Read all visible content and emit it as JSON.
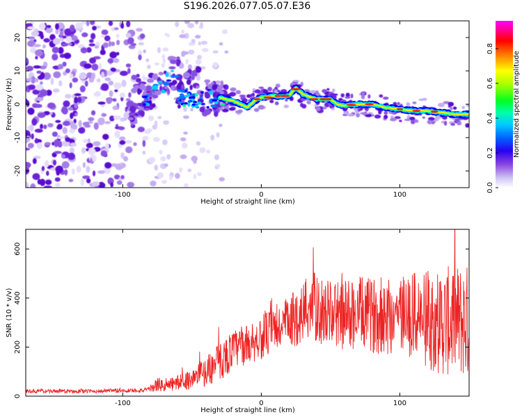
{
  "title": "S196.2026.077.05.07.E36",
  "chart_data": [
    {
      "type": "heatmap",
      "name": "spectrogram",
      "xlabel": "Height of straight line (km)",
      "ylabel": "Frequency (Hz)",
      "xlim": [
        -170,
        150
      ],
      "ylim": [
        -25,
        25
      ],
      "xticks": [
        -100,
        0,
        100
      ],
      "yticks": [
        -20,
        -10,
        0,
        10,
        20
      ],
      "colorbar": {
        "label": "Normalized spectral amplitude",
        "range": [
          0,
          0.96
        ],
        "ticks": [
          0.0,
          0.2,
          0.4,
          0.6,
          0.8
        ],
        "colormap": [
          "#ffffff",
          "#cfc2f2",
          "#9d6ee0",
          "#6a18d8",
          "#0000ff",
          "#0088ff",
          "#00ffff",
          "#00ff44",
          "#aaff00",
          "#ffff00",
          "#ff6a00",
          "#ff0000",
          "#ff00aa",
          "#ff00ff"
        ]
      },
      "ridge": {
        "description_points_x": [
          -30,
          -20,
          -15,
          -10,
          -5,
          0,
          10,
          20,
          25,
          30,
          40,
          50,
          55,
          60,
          70,
          80,
          90,
          100,
          110,
          120,
          130,
          140,
          150
        ],
        "description_points_y": [
          2,
          1,
          0,
          -1,
          1,
          2,
          2.5,
          2.5,
          5,
          3,
          1.5,
          1.5,
          0,
          -0.5,
          0,
          0,
          -1,
          -1.5,
          -2,
          -2,
          -2.5,
          -3,
          -3
        ]
      }
    },
    {
      "type": "line",
      "name": "snr",
      "xlabel": "Height of straight line (km)",
      "ylabel": "SNR (10 * v/v)",
      "xlim": [
        -170,
        150
      ],
      "ylim": [
        0,
        680
      ],
      "xticks": [
        -100,
        0,
        100
      ],
      "yticks": [
        0,
        200,
        400,
        600
      ],
      "series": [
        {
          "name": "SNR",
          "color": "#ee2222",
          "envelope_x": [
            -170,
            -120,
            -80,
            -75,
            -70,
            -50,
            -40,
            -30,
            -20,
            -10,
            0,
            10,
            20,
            30,
            35,
            40,
            50,
            60,
            70,
            80,
            90,
            100,
            110,
            120,
            130,
            140,
            150
          ],
          "envelope_mean": [
            20,
            20,
            25,
            50,
            40,
            70,
            100,
            140,
            190,
            210,
            240,
            270,
            300,
            340,
            380,
            350,
            340,
            330,
            340,
            330,
            330,
            340,
            330,
            310,
            300,
            310,
            300
          ],
          "envelope_amp": [
            8,
            8,
            10,
            30,
            25,
            40,
            60,
            80,
            80,
            80,
            90,
            100,
            110,
            130,
            160,
            140,
            130,
            150,
            150,
            150,
            170,
            170,
            180,
            200,
            220,
            230,
            240
          ]
        }
      ]
    }
  ]
}
